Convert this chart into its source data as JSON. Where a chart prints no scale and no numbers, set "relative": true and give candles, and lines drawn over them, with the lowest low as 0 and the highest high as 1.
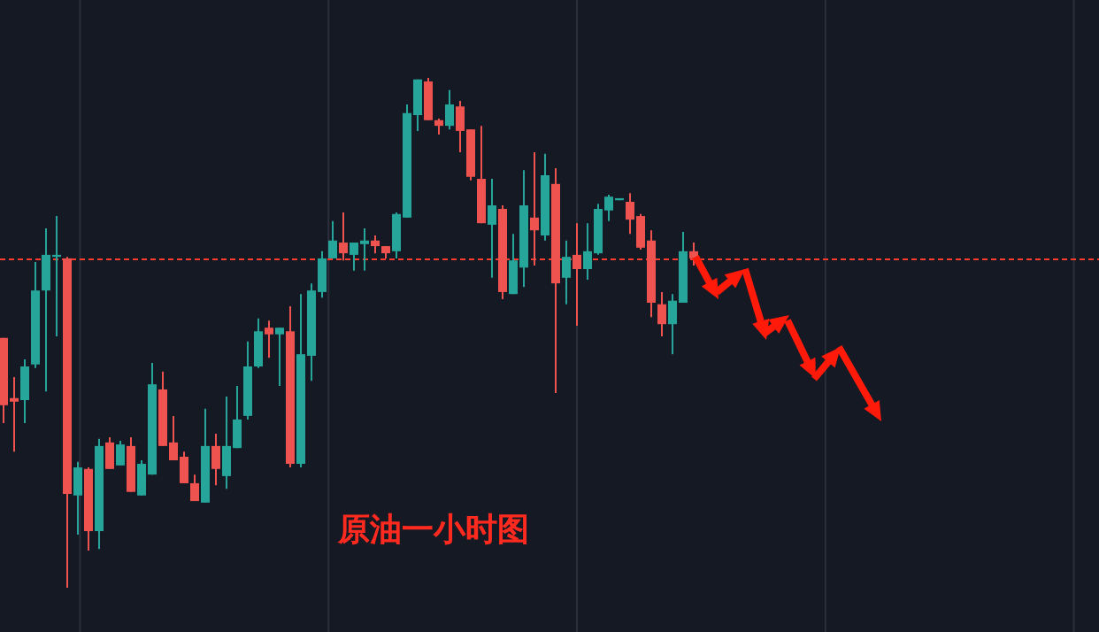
{
  "chart_data": {
    "type": "candlestick",
    "relative": true,
    "grid": "x",
    "categories": [
      null,
      null,
      null,
      null,
      null,
      null,
      null,
      null,
      null,
      null,
      null,
      null,
      null,
      null,
      null,
      null,
      null,
      null,
      null,
      null,
      null,
      null,
      null,
      null,
      null,
      null,
      null,
      null,
      null,
      null,
      null,
      null,
      null,
      null,
      null,
      null,
      null,
      null,
      null,
      null,
      null,
      null,
      null,
      null,
      null,
      null,
      null,
      null,
      null,
      null,
      null,
      null,
      null,
      null,
      null,
      null,
      null,
      null,
      null,
      null,
      null,
      null,
      null,
      null,
      null,
      null
    ],
    "ohlc": [
      [
        0.49,
        0.49,
        0.323,
        0.358
      ],
      [
        0.372,
        0.413,
        0.267,
        0.365
      ],
      [
        0.368,
        0.448,
        0.323,
        0.434
      ],
      [
        0.438,
        0.639,
        0.431,
        0.583
      ],
      [
        0.583,
        0.705,
        0.385,
        0.653
      ],
      [
        0.649,
        0.729,
        0.493,
        0.653
      ],
      [
        0.646,
        0.649,
        0,
        0.184
      ],
      [
        0.181,
        0.247,
        0.104,
        0.236
      ],
      [
        0.233,
        0.236,
        0.073,
        0.111
      ],
      [
        0.111,
        0.292,
        0.076,
        0.278
      ],
      [
        0.285,
        0.295,
        0.233,
        0.233
      ],
      [
        0.24,
        0.288,
        0.24,
        0.281
      ],
      [
        0.278,
        0.295,
        0.188,
        0.188
      ],
      [
        0.181,
        0.25,
        0.181,
        0.243
      ],
      [
        0.222,
        0.441,
        0.222,
        0.399
      ],
      [
        0.389,
        0.424,
        0.278,
        0.278
      ],
      [
        0.285,
        0.337,
        0.25,
        0.25
      ],
      [
        0.257,
        0.267,
        0.205,
        0.205
      ],
      [
        0.205,
        0.222,
        0.17,
        0.17
      ],
      [
        0.167,
        0.351,
        0.167,
        0.278
      ],
      [
        0.278,
        0.302,
        0.201,
        0.233
      ],
      [
        0.219,
        0.375,
        0.194,
        0.278
      ],
      [
        0.274,
        0.396,
        0.274,
        0.33
      ],
      [
        0.337,
        0.483,
        0.33,
        0.434
      ],
      [
        0.434,
        0.528,
        0.431,
        0.503
      ],
      [
        0.51,
        0.524,
        0.451,
        0.497
      ],
      [
        0.497,
        0.51,
        0.396,
        0.51
      ],
      [
        0.503,
        0.552,
        0.236,
        0.243
      ],
      [
        0.243,
        0.576,
        0.236,
        0.458
      ],
      [
        0.455,
        0.597,
        0.406,
        0.583
      ],
      [
        0.58,
        0.66,
        0.569,
        0.646
      ],
      [
        0.646,
        0.719,
        0.646,
        0.681
      ],
      [
        0.677,
        0.736,
        0.642,
        0.656
      ],
      [
        0.653,
        0.677,
        0.622,
        0.677
      ],
      [
        0.674,
        0.705,
        0.622,
        0.681
      ],
      [
        0.681,
        0.691,
        0.656,
        0.67
      ],
      [
        0.67,
        0.67,
        0.646,
        0.656
      ],
      [
        0.66,
        0.736,
        0.646,
        0.733
      ],
      [
        0.726,
        0.948,
        0.726,
        0.931
      ],
      [
        0.927,
        0.997,
        0.896,
        0.997
      ],
      [
        0.993,
        1,
        0.917,
        0.917
      ],
      [
        0.917,
        0.92,
        0.889,
        0.906
      ],
      [
        0.906,
        0.976,
        0.899,
        0.948
      ],
      [
        0.944,
        0.955,
        0.854,
        0.896
      ],
      [
        0.899,
        0.899,
        0.799,
        0.806
      ],
      [
        0.802,
        0.906,
        0.715,
        0.715
      ],
      [
        0.712,
        0.802,
        0.608,
        0.75
      ],
      [
        0.743,
        0.75,
        0.566,
        0.58
      ],
      [
        0.576,
        0.694,
        0.576,
        0.642
      ],
      [
        0.628,
        0.819,
        0.59,
        0.75
      ],
      [
        0.726,
        0.854,
        0.632,
        0.701
      ],
      [
        0.691,
        0.851,
        0.681,
        0.809
      ],
      [
        0.792,
        0.823,
        0.382,
        0.597
      ],
      [
        0.608,
        0.681,
        0.556,
        0.649
      ],
      [
        0.653,
        0.715,
        0.514,
        0.625
      ],
      [
        0.625,
        0.715,
        0.604,
        0.66
      ],
      [
        0.656,
        0.753,
        0.653,
        0.743
      ],
      [
        0.74,
        0.771,
        0.719,
        0.767
      ],
      [
        0.76,
        0.764,
        0.76,
        0.764
      ],
      [
        0.757,
        0.774,
        0.694,
        0.722
      ],
      [
        0.729,
        0.733,
        0.663,
        0.667
      ],
      [
        0.681,
        0.701,
        0.531,
        0.559
      ],
      [
        0.556,
        0.58,
        0.493,
        0.517
      ],
      [
        0.517,
        0.576,
        0.458,
        0.563
      ],
      [
        0.559,
        0.698,
        0.559,
        0.66
      ],
      [
        0.66,
        0.677,
        0.632,
        0.646
      ]
    ],
    "ref_lines": [
      {
        "axis": "y",
        "value": 0.644,
        "color": "#ff3b30",
        "line_style": "dashed"
      }
    ],
    "annotations": [
      "原油一小时图"
    ]
  }
}
